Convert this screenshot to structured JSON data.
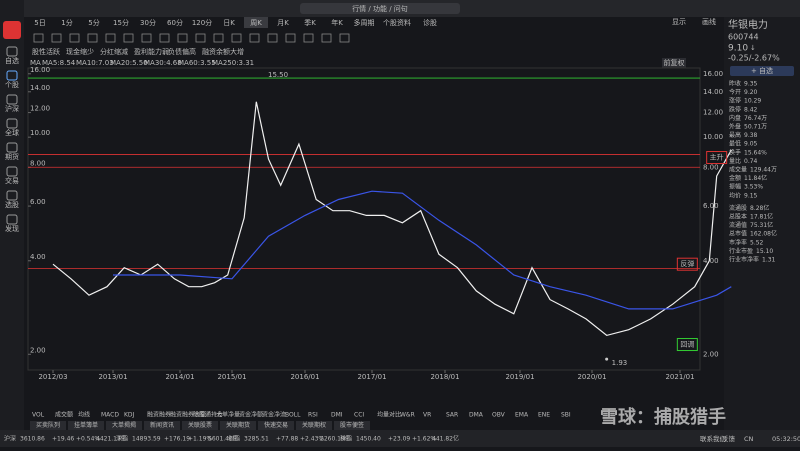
{
  "window": {
    "title": "行情 / 功能 / 问句",
    "right": [
      "显示",
      "画线"
    ]
  },
  "tabs": [
    "5日",
    "1分",
    "5分",
    "15分",
    "30分",
    "60分",
    "120分",
    "日K",
    "周K",
    "月K",
    "季K",
    "年K",
    "多周期",
    "个股资料",
    "诊股"
  ],
  "active_tab": "周K",
  "sidebar": [
    "自选",
    "个股",
    "沪深",
    "全球",
    "期货",
    "交易",
    "选股",
    "发现"
  ],
  "tags": [
    "股性活跃",
    "现金缩少",
    "分红缩减",
    "盈利能力弱",
    "负债偏高",
    "融资余额大增"
  ],
  "ma_legend": [
    {
      "text": "MA",
      "color": "#ccc"
    },
    {
      "text": "MA5:8.54",
      "color": "#e66"
    },
    {
      "text": "MA10:7.03",
      "color": "#ee4"
    },
    {
      "text": "MA20:5.50",
      "color": "#5e5"
    },
    {
      "text": "MA30:4.68",
      "color": "#5ee"
    },
    {
      "text": "MA60:3.55",
      "color": "#e6e"
    },
    {
      "text": "MA250:3.31",
      "color": "#46f"
    }
  ],
  "adjust_button": "前复权",
  "chart_data": {
    "type": "line",
    "log_scale": true,
    "ylim": [
      1.78,
      16.7
    ],
    "yticks": [
      {
        "value": 2,
        "label": "2.00"
      },
      {
        "value": 4,
        "label": "4.00"
      },
      {
        "value": 6,
        "label": "6.00"
      },
      {
        "value": 8,
        "label": "8.00"
      },
      {
        "value": 10,
        "label": "10.00"
      },
      {
        "value": 12,
        "label": "12.00"
      },
      {
        "value": 14,
        "label": "14.00"
      },
      {
        "value": 16,
        "label": "16.00"
      }
    ],
    "xticks": [
      "2012/03",
      "2013/01",
      "2014/01",
      "2015/01",
      "2016/01",
      "2017/01",
      "2018/01",
      "2019/01",
      "2020/01",
      "2021/01"
    ],
    "series": [
      {
        "name": "收盘",
        "color": "#f0f0f0",
        "x": [
          "2012/03",
          "2012/06",
          "2012/09",
          "2012/12",
          "2013/03",
          "2013/06",
          "2013/09",
          "2013/12",
          "2014/03",
          "2014/06",
          "2014/09",
          "2014/12",
          "2015/03",
          "2015/05",
          "2015/07",
          "2015/09",
          "2015/12",
          "2016/03",
          "2016/06",
          "2016/09",
          "2016/12",
          "2017/03",
          "2017/06",
          "2017/09",
          "2017/12",
          "2018/03",
          "2018/06",
          "2018/09",
          "2018/12",
          "2019/03",
          "2019/06",
          "2019/09",
          "2019/12",
          "2020/03",
          "2020/06",
          "2020/09",
          "2020/12",
          "2021/03",
          "2021/05",
          "2021/06",
          "2021/08"
        ],
        "values": [
          3.9,
          3.5,
          3.1,
          3.3,
          3.8,
          3.6,
          3.9,
          3.5,
          3.3,
          3.3,
          3.4,
          3.6,
          5.5,
          13.0,
          8.5,
          7.0,
          9.5,
          6.3,
          5.8,
          5.8,
          5.6,
          5.6,
          5.3,
          5.8,
          4.2,
          3.8,
          3.2,
          2.9,
          2.7,
          3.8,
          3.0,
          2.8,
          2.6,
          2.3,
          2.4,
          2.6,
          2.9,
          3.3,
          4.0,
          7.5,
          9.1
        ]
      },
      {
        "name": "MA250",
        "color": "#3a55e8",
        "x": [
          "2013/01",
          "2014/01",
          "2015/01",
          "2015/07",
          "2016/01",
          "2016/07",
          "2017/01",
          "2017/06",
          "2017/12",
          "2018/06",
          "2018/12",
          "2019/06",
          "2019/12",
          "2020/06",
          "2020/12",
          "2021/06",
          "2021/08"
        ],
        "values": [
          3.6,
          3.6,
          3.5,
          4.8,
          5.6,
          6.3,
          6.7,
          6.6,
          5.4,
          4.5,
          3.6,
          3.3,
          3.1,
          2.8,
          2.8,
          3.1,
          3.3
        ]
      }
    ],
    "levels": [
      {
        "value": 15.5,
        "label": "15.50",
        "color": "#3c3"
      },
      {
        "value": 8.8,
        "color": "#d33"
      },
      {
        "value": 8.0,
        "color": "#d33"
      },
      {
        "value": 3.78,
        "color": "#d33"
      }
    ],
    "low": {
      "value": 1.93,
      "label": "1.93",
      "x": "2020/03"
    },
    "boxes": [
      {
        "text": "主升",
        "x": "2021/06",
        "value": 8.6,
        "color": "#d33"
      },
      {
        "text": "反弹",
        "x": "2021/02",
        "value": 3.9,
        "color": "#d33"
      },
      {
        "text": "回调",
        "x": "2021/02",
        "value": 2.15,
        "color": "#3c3"
      }
    ]
  },
  "stock": {
    "name": "华银电力",
    "code": "600744",
    "price": "9.10",
    "arrow": "↓",
    "change": "-0.25/-2.67%",
    "button": "+ 自选",
    "stats": [
      [
        "昨收",
        "9.35",
        "#ccc"
      ],
      [
        "今开",
        "9.20",
        "#3c3"
      ],
      [
        "涨停",
        "10.29",
        "#e44"
      ],
      [
        "跌停",
        "8.42",
        "#3c3"
      ],
      [
        "内盘",
        "76.74万",
        "#3c3"
      ],
      [
        "外盘",
        "50.71万",
        "#e44"
      ],
      [
        "最高",
        "9.38",
        "#3c3"
      ],
      [
        "最低",
        "9.05",
        "#3c3"
      ],
      [
        "换手",
        "15.64%",
        "#ccc"
      ],
      [
        "量比",
        "0.74",
        "#ccc"
      ],
      [
        "成交量",
        "129.44万",
        "#ccc"
      ],
      [
        "金额",
        "11.84亿",
        "#ccc"
      ],
      [
        "振幅",
        "3.53%",
        "#ccc"
      ],
      [
        "均价",
        "9.15",
        "#3c3"
      ],
      [
        "流通股",
        "8.28亿",
        "#ccc"
      ],
      [
        "总股本",
        "17.81亿",
        "#ccc"
      ],
      [
        "流通值",
        "75.31亿",
        "#ccc"
      ],
      [
        "总市值",
        "162.08亿",
        "#ccc"
      ],
      [
        "市净率",
        "5.52",
        "#ccc"
      ],
      [
        "行业市盈",
        "15.10",
        "#ccc"
      ],
      [
        "行业市净率",
        "1.31",
        "#ccc"
      ]
    ]
  },
  "indicator_tabs": [
    "VOL",
    "成交额",
    "均线",
    "MACD",
    "KDJ",
    "融资融券",
    "融资融券余额",
    "陆股通持仓",
    "大单净量",
    "资金净额",
    "资金净流",
    "BOLL",
    "RSI",
    "DMI",
    "CCI",
    "均量对比",
    "W&R",
    "VR",
    "SAR",
    "DMA",
    "OBV",
    "EMA",
    "ENE",
    "SBI"
  ],
  "panel_tabs": [
    "买卖队列",
    "挂单簿单",
    "大单揭揭",
    "新闻资讯",
    "关联股票",
    "关联期货",
    "快速交易",
    "关联期权",
    "股市便签"
  ],
  "status": [
    [
      "沪深",
      "3610.86",
      "+19.46",
      "+0.54%",
      "4421.17亿"
    ],
    [
      "深指",
      "14893.59",
      "+176.19",
      "+1.19%",
      "5601.46亿"
    ],
    [
      "创指",
      "3285.51",
      "+77.88",
      "+2.43%",
      "2260.19亿"
    ],
    [
      "科指",
      "1450.40",
      "+23.09",
      "+1.62%",
      "441.82亿"
    ]
  ],
  "status_right": [
    "联系我们",
    "反馈",
    "CN",
    "05:32:50"
  ],
  "watermark": "雪球：捕股猎手"
}
